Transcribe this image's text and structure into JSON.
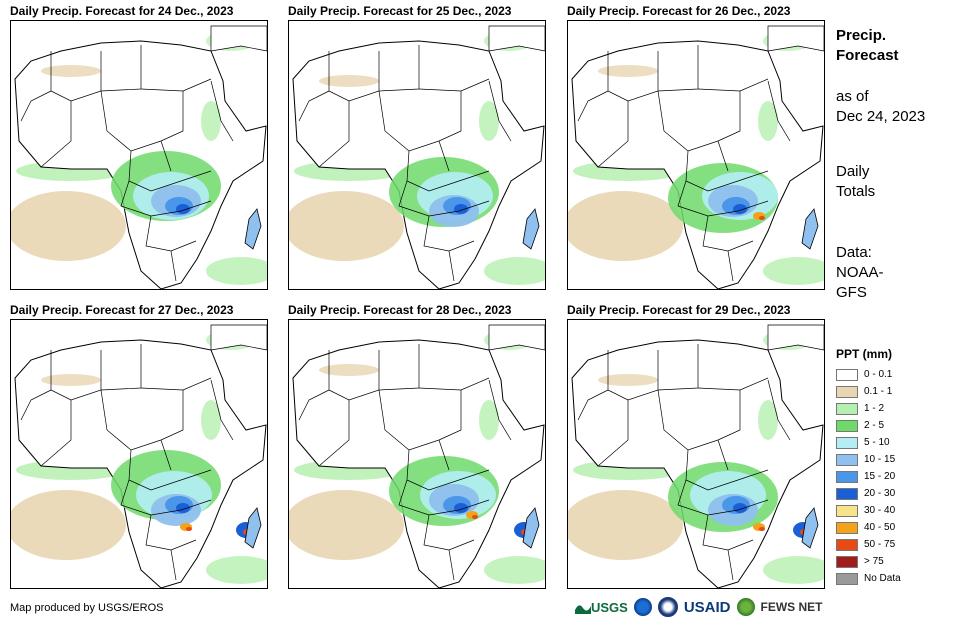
{
  "panels": [
    {
      "title": "Daily Precip. Forecast for 24 Dec., 2023"
    },
    {
      "title": "Daily Precip. Forecast for 25 Dec., 2023"
    },
    {
      "title": "Daily Precip. Forecast for 26 Dec., 2023"
    },
    {
      "title": "Daily Precip. Forecast for 27 Dec., 2023"
    },
    {
      "title": "Daily Precip. Forecast for 28 Dec., 2023"
    },
    {
      "title": "Daily Precip. Forecast for 29 Dec., 2023"
    }
  ],
  "side": {
    "title_line1": "Precip.",
    "title_line2": "Forecast",
    "asof_line1": "as of",
    "asof_line2": "Dec 24, 2023",
    "daily_line1": "Daily",
    "daily_line2": "Totals",
    "data_line1": "Data:",
    "data_line2": "NOAA-",
    "data_line3": "GFS"
  },
  "legend": {
    "title": "PPT (mm)",
    "items": [
      {
        "label": "0 - 0.1",
        "color": "#ffffff"
      },
      {
        "label": "0.1 - 1",
        "color": "#e8d6b3"
      },
      {
        "label": "1 - 2",
        "color": "#b6f0b0"
      },
      {
        "label": "2 - 5",
        "color": "#6fd96a"
      },
      {
        "label": "5 - 10",
        "color": "#b3eef5"
      },
      {
        "label": "10 - 15",
        "color": "#8fc0ee"
      },
      {
        "label": "15 - 20",
        "color": "#4a97ea"
      },
      {
        "label": "20 - 30",
        "color": "#1a5fd6"
      },
      {
        "label": "30 - 40",
        "color": "#f7e38a"
      },
      {
        "label": "40 - 50",
        "color": "#f3a21a"
      },
      {
        "label": "50 - 75",
        "color": "#e84a14"
      },
      {
        "label": "> 75",
        "color": "#a21c1c"
      },
      {
        "label": "No Data",
        "color": "#9a9a9a"
      }
    ]
  },
  "credit": "Map produced by USGS/EROS",
  "logos": {
    "usgs": "USGS",
    "usaid": "USAID",
    "fewsnet": "FEWS NET"
  }
}
